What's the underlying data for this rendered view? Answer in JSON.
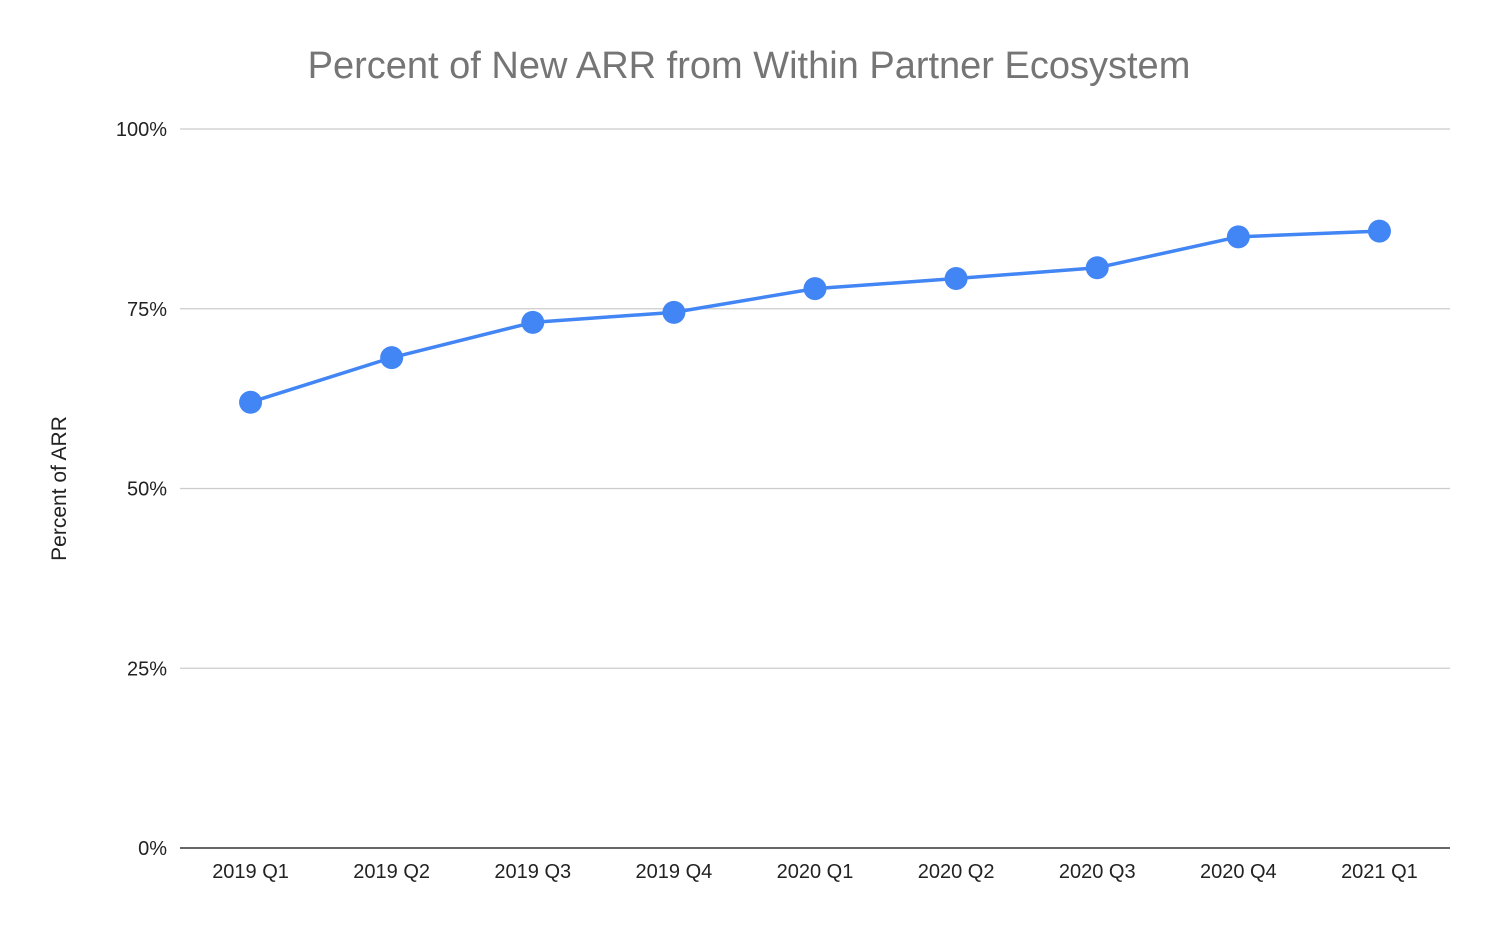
{
  "chart_data": {
    "type": "line",
    "title": "Percent of New ARR from Within Partner Ecosystem",
    "xlabel": "",
    "ylabel": "Percent of ARR",
    "categories": [
      "2019 Q1",
      "2019 Q2",
      "2019 Q3",
      "2019 Q4",
      "2020 Q1",
      "2020 Q2",
      "2020 Q3",
      "2020 Q4",
      "2021 Q1"
    ],
    "series": [
      {
        "values": [
          62,
          68.2,
          73.1,
          74.5,
          77.8,
          79.2,
          80.7,
          85,
          85.8
        ]
      }
    ],
    "ylim": [
      0,
      100
    ],
    "yticks": [
      "0%",
      "25%",
      "50%",
      "75%",
      "100%"
    ],
    "ytick_values": [
      0,
      25,
      50,
      75,
      100
    ],
    "grid": true,
    "legend": "none",
    "colors": {
      "series": "#4285f4",
      "grid": "#cccccc",
      "title": "#757575"
    }
  }
}
